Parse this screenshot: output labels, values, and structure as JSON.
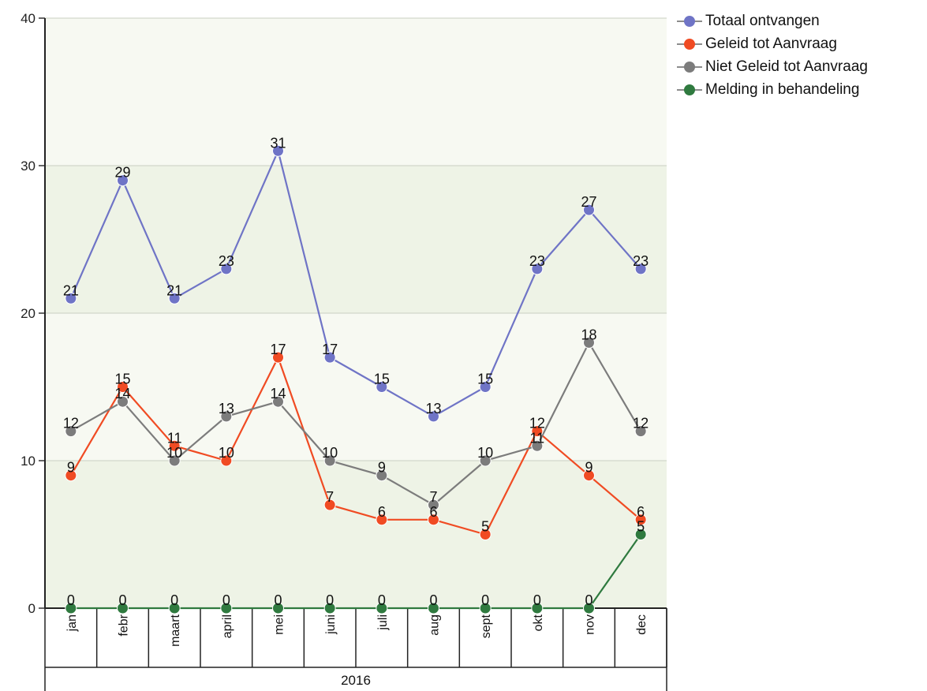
{
  "chart_data": {
    "type": "line",
    "categories": [
      "jan",
      "febr",
      "maart",
      "april",
      "mei",
      "juni",
      "juli",
      "aug",
      "sept",
      "okt",
      "nov",
      "dec"
    ],
    "group_label": "2016",
    "ylim": [
      0,
      40
    ],
    "yticks": [
      "0",
      "10",
      "20",
      "30",
      "40"
    ],
    "grid": true,
    "legend_position": "top-right",
    "series": [
      {
        "name": "Totaal ontvangen",
        "color": "#6f74c6",
        "values": [
          21,
          29,
          21,
          23,
          31,
          17,
          15,
          13,
          15,
          23,
          27,
          23
        ]
      },
      {
        "name": "Geleid tot Aanvraag",
        "color": "#f04b23",
        "values": [
          9,
          15,
          11,
          10,
          17,
          7,
          6,
          6,
          5,
          12,
          9,
          6
        ]
      },
      {
        "name": "Niet Geleid tot Aanvraag",
        "color": "#7c7c7c",
        "values": [
          12,
          14,
          10,
          13,
          14,
          10,
          9,
          7,
          10,
          11,
          18,
          12
        ]
      },
      {
        "name": "Melding in behandeling",
        "color": "#2f7a3f",
        "values": [
          0,
          0,
          0,
          0,
          0,
          0,
          0,
          0,
          0,
          0,
          0,
          5
        ]
      }
    ]
  }
}
